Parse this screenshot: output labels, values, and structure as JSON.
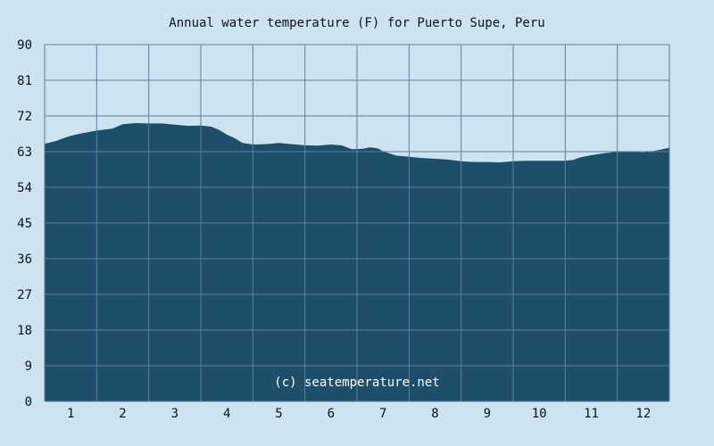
{
  "chart_data": {
    "type": "area",
    "title": "Annual water temperature (F) for Puerto Supe, Peru",
    "xlabel": "",
    "ylabel": "",
    "ylim": [
      0,
      90
    ],
    "xlim": [
      0.5,
      12.5
    ],
    "yticks": [
      "0",
      "9",
      "18",
      "27",
      "36",
      "45",
      "54",
      "63",
      "72",
      "81",
      "90"
    ],
    "xticks": [
      "1",
      "2",
      "3",
      "4",
      "5",
      "6",
      "7",
      "8",
      "9",
      "10",
      "11",
      "12"
    ],
    "grid": true,
    "watermark": "(c) seatemperature.net",
    "series": [
      {
        "values_x": [
          0.5,
          0.7,
          0.85,
          1.0,
          1.2,
          1.5,
          1.8,
          2.0,
          2.25,
          2.5,
          2.75,
          3.0,
          3.25,
          3.5,
          3.7,
          3.85,
          4.0,
          4.15,
          4.3,
          4.5,
          4.75,
          5.0,
          5.25,
          5.5,
          5.75,
          6.0,
          6.2,
          6.4,
          6.6,
          6.75,
          6.9,
          7.0,
          7.25,
          7.5,
          7.75,
          8.0,
          8.25,
          8.5,
          8.75,
          9.0,
          9.25,
          9.5,
          9.75,
          10.0,
          10.5,
          10.65,
          10.8,
          11.0,
          11.25,
          11.5,
          11.75,
          12.0,
          12.25,
          12.5
        ],
        "values": [
          65.0,
          65.6,
          66.3,
          67.0,
          67.6,
          68.3,
          68.8,
          69.9,
          70.2,
          70.1,
          70.1,
          69.8,
          69.5,
          69.6,
          69.3,
          68.5,
          67.3,
          66.4,
          65.2,
          64.8,
          64.9,
          65.2,
          64.9,
          64.6,
          64.5,
          64.8,
          64.6,
          63.6,
          63.7,
          64.1,
          63.8,
          63.1,
          62.0,
          61.7,
          61.4,
          61.2,
          61.0,
          60.6,
          60.4,
          60.4,
          60.3,
          60.6,
          60.7,
          60.7,
          60.7,
          60.9,
          61.6,
          62.1,
          62.6,
          63.0,
          63.0,
          62.8,
          63.3,
          64.0
        ]
      }
    ],
    "colors": {
      "background": "#cde3ef",
      "area": "#1e4f6a",
      "grid": "#5c7fa0",
      "watermark": "#ffffff",
      "text": "#111111"
    }
  }
}
